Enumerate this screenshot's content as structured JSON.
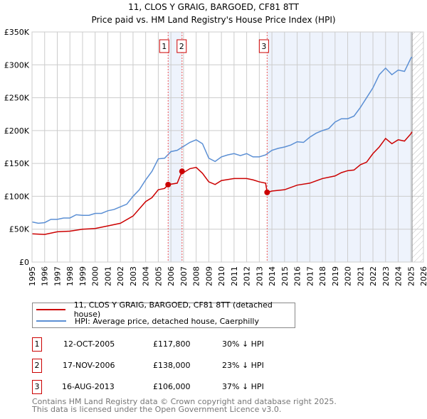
{
  "chart_data": {
    "type": "line",
    "title": "11, CLOS Y GRAIG, BARGOED, CF81 8TT",
    "subtitle": "Price paid vs. HM Land Registry's House Price Index (HPI)",
    "xlim": [
      1995,
      2026
    ],
    "ylim": [
      0,
      350000
    ],
    "x_ticks": [
      "1995",
      "1996",
      "1997",
      "1998",
      "1999",
      "2000",
      "2001",
      "2002",
      "2003",
      "2004",
      "2005",
      "2006",
      "2007",
      "2008",
      "2009",
      "2010",
      "2011",
      "2012",
      "2013",
      "2014",
      "2015",
      "2016",
      "2017",
      "2018",
      "2019",
      "2020",
      "2021",
      "2022",
      "2023",
      "2024",
      "2025",
      "2026"
    ],
    "y_ticks": [
      {
        "v": 0,
        "label": "£0"
      },
      {
        "v": 50000,
        "label": "£50K"
      },
      {
        "v": 100000,
        "label": "£100K"
      },
      {
        "v": 150000,
        "label": "£150K"
      },
      {
        "v": 200000,
        "label": "£200K"
      },
      {
        "v": 250000,
        "label": "£250K"
      },
      {
        "v": 300000,
        "label": "£300K"
      },
      {
        "v": 350000,
        "label": "£350K"
      }
    ],
    "grid": true,
    "data_end": 2025.1,
    "series": [
      {
        "name": "11, CLOS Y GRAIG, BARGOED, CF81 8TT (detached house)",
        "color": "#cc0000",
        "x": [
          1995,
          1996,
          1997,
          1998,
          1999,
          2000,
          2001,
          2002,
          2003,
          2004,
          2004.5,
          2005,
          2005.5,
          2005.78,
          2006.5,
          2006.88,
          2007,
          2007.5,
          2008,
          2008.5,
          2009,
          2009.5,
          2010,
          2011,
          2012,
          2012.5,
          2013,
          2013.5,
          2013.62,
          2014,
          2015,
          2016,
          2017,
          2018,
          2019,
          2019.5,
          2020,
          2020.5,
          2021,
          2021.5,
          2022,
          2022.5,
          2023,
          2023.5,
          2024,
          2024.5,
          2025,
          2025.1
        ],
        "y": [
          43000,
          42000,
          46000,
          47000,
          50000,
          51000,
          55000,
          59000,
          70000,
          92000,
          98000,
          110000,
          112000,
          117800,
          120000,
          138000,
          136000,
          142000,
          144000,
          135000,
          122000,
          118000,
          124000,
          127000,
          127000,
          125000,
          122000,
          120000,
          106000,
          108000,
          110000,
          117000,
          120000,
          127000,
          131000,
          136000,
          139000,
          140000,
          148000,
          152000,
          165000,
          175000,
          188000,
          180000,
          186000,
          184000,
          195000,
          198000
        ]
      },
      {
        "name": "HPI: Average price, detached house, Caerphilly",
        "color": "#5b8fd4",
        "x": [
          1995,
          1995.5,
          1996,
          1996.5,
          1997,
          1997.5,
          1998,
          1998.5,
          1999,
          1999.5,
          2000,
          2000.5,
          2001,
          2001.5,
          2002,
          2002.5,
          2003,
          2003.5,
          2004,
          2004.5,
          2005,
          2005.5,
          2006,
          2006.5,
          2007,
          2007.5,
          2008,
          2008.5,
          2009,
          2009.5,
          2010,
          2010.5,
          2011,
          2011.5,
          2012,
          2012.5,
          2013,
          2013.5,
          2014,
          2014.5,
          2015,
          2015.5,
          2016,
          2016.5,
          2017,
          2017.5,
          2018,
          2018.5,
          2019,
          2019.5,
          2020,
          2020.5,
          2021,
          2021.5,
          2022,
          2022.5,
          2023,
          2023.5,
          2024,
          2024.5,
          2025,
          2025.1
        ],
        "y": [
          61000,
          59000,
          60000,
          65000,
          65000,
          67000,
          67000,
          72000,
          71000,
          71000,
          74000,
          74000,
          78000,
          80000,
          84000,
          88000,
          100000,
          110000,
          125000,
          138000,
          157000,
          158000,
          168000,
          170000,
          176000,
          182000,
          186000,
          180000,
          158000,
          153000,
          160000,
          163000,
          165000,
          162000,
          165000,
          160000,
          160000,
          163000,
          170000,
          173000,
          175000,
          178000,
          183000,
          182000,
          190000,
          196000,
          200000,
          203000,
          213000,
          218000,
          218000,
          222000,
          235000,
          250000,
          265000,
          285000,
          295000,
          285000,
          292000,
          290000,
          310000,
          312000
        ]
      }
    ],
    "sales": [
      {
        "n": "1",
        "x": 2005.78,
        "y": 117800,
        "date": "12-OCT-2005",
        "price": "£117,800",
        "hpi": "30% ↓ HPI"
      },
      {
        "n": "2",
        "x": 2006.88,
        "y": 138000,
        "date": "17-NOV-2006",
        "price": "£138,000",
        "hpi": "23% ↓ HPI"
      },
      {
        "n": "3",
        "x": 2013.62,
        "y": 106000,
        "date": "16-AUG-2013",
        "price": "£106,000",
        "hpi": "37% ↓ HPI"
      }
    ]
  },
  "footer": {
    "line1": "Contains HM Land Registry data © Crown copyright and database right 2025.",
    "line2": "This data is licensed under the Open Government Licence v3.0."
  }
}
